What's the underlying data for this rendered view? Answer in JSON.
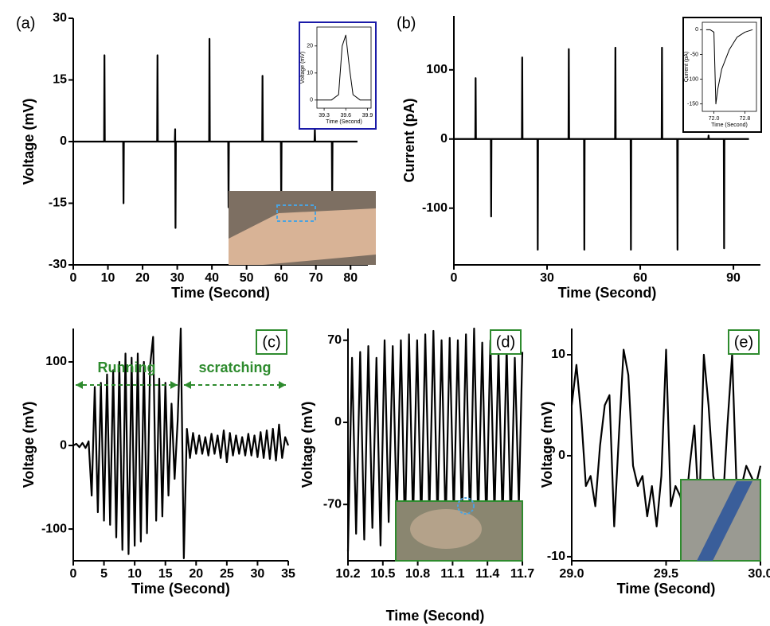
{
  "chart_data": [
    {
      "type": "line",
      "panel_label": "(a)",
      "xlabel": "Time (Second)",
      "ylabel": "Voltage (mV)",
      "color": "#000000",
      "x": [
        0,
        8.9,
        9,
        9.1,
        14.4,
        14.5,
        14.6,
        24.2,
        24.3,
        24.4,
        29.3,
        29.4,
        29.5,
        29.6,
        39.2,
        39.3,
        39.4,
        44.7,
        44.8,
        44.9,
        54.5,
        54.6,
        54.7,
        59.9,
        60,
        60.1,
        69.6,
        69.7,
        69.8,
        74.6,
        74.7,
        74.8,
        82
      ],
      "values": [
        0,
        0,
        21,
        0,
        0,
        -15,
        0,
        0,
        21,
        0,
        0,
        3,
        -21,
        0,
        0,
        25,
        0,
        0,
        -16,
        0,
        0,
        16,
        0,
        0,
        -16,
        0,
        0,
        3,
        0,
        0,
        -16,
        0,
        0
      ],
      "xlim": [
        0,
        85
      ],
      "xticks": [
        0,
        10,
        20,
        30,
        40,
        50,
        60,
        70,
        80
      ],
      "ylim": [
        -30,
        30
      ],
      "yticks": [
        -30,
        -15,
        0,
        15,
        30
      ]
    },
    {
      "type": "line",
      "xlabel": "Time (Second)",
      "ylabel": "Voltage (mV)",
      "color": "#000000",
      "x": [
        39.2,
        39.3,
        39.4,
        39.5,
        39.55,
        39.6,
        39.65,
        39.7,
        39.8,
        39.9,
        39.95
      ],
      "values": [
        0,
        0,
        0,
        2,
        20,
        24,
        12,
        2,
        0,
        0,
        0
      ],
      "xlim": [
        39.2,
        39.95
      ],
      "xticks": [
        39.3,
        39.6,
        39.9
      ],
      "ylim": [
        -3,
        27
      ],
      "yticks": [
        0,
        10,
        20
      ]
    },
    {
      "type": "line",
      "panel_label": "(b)",
      "xlabel": "Time (Second)",
      "ylabel": "Current (pA)",
      "color": "#000000",
      "x": [
        0,
        6.9,
        7,
        7.1,
        11.9,
        12,
        12.1,
        21.9,
        22,
        22.1,
        26.9,
        27,
        27.1,
        36.9,
        37,
        37.1,
        41.9,
        42,
        42.1,
        51.9,
        52,
        52.1,
        56.9,
        57,
        57.1,
        66.9,
        67,
        67.1,
        71.9,
        72,
        72.1,
        81.9,
        82,
        82.1,
        86.9,
        87,
        87.1,
        95
      ],
      "values": [
        0,
        0,
        88,
        0,
        0,
        -112,
        0,
        0,
        118,
        0,
        0,
        -160,
        0,
        0,
        130,
        0,
        0,
        -160,
        0,
        0,
        132,
        0,
        0,
        -160,
        0,
        0,
        132,
        0,
        0,
        -160,
        0,
        0,
        5,
        0,
        0,
        -158,
        0,
        0
      ],
      "xlim": [
        0,
        98.7
      ],
      "xticks": [
        0,
        30,
        60,
        90
      ],
      "ylim": [
        -182,
        178
      ],
      "yticks": [
        -100,
        0,
        100
      ]
    },
    {
      "type": "line",
      "xlabel": "Time (Second)",
      "ylabel": "Current (pA)",
      "color": "#000000",
      "x": [
        71.8,
        71.9,
        72.0,
        72.05,
        72.1,
        72.2,
        72.4,
        72.6,
        72.8,
        73.0
      ],
      "values": [
        0,
        0,
        -5,
        -150,
        -120,
        -80,
        -40,
        -15,
        -5,
        0
      ],
      "xlim": [
        71.7,
        73.1
      ],
      "xticks": [
        {
          "value": 72,
          "label": "72.0"
        },
        72.8
      ],
      "ylim": [
        -165,
        15
      ],
      "yticks": [
        0,
        -50,
        -100,
        -150
      ]
    },
    {
      "type": "line",
      "panel_label": "(c)",
      "xlabel": "Time (Second)",
      "ylabel": "Voltage (mV)",
      "color": "#000000",
      "annotations": [
        "Running",
        "scratching"
      ],
      "x": [
        0,
        0.5,
        1,
        1.5,
        2,
        2.5,
        3,
        3.5,
        4,
        4.5,
        5,
        5.5,
        6,
        6.5,
        7,
        7.5,
        8,
        8.5,
        9,
        9.5,
        10,
        10.5,
        11,
        11.5,
        12,
        12.5,
        13,
        13.5,
        14,
        14.5,
        15,
        15.5,
        16,
        16.5,
        17,
        17.5,
        18,
        18.5,
        19,
        19.5,
        20,
        20.5,
        21,
        21.5,
        22,
        22.5,
        23,
        23.5,
        24,
        24.5,
        25,
        25.5,
        26,
        26.5,
        27,
        27.5,
        28,
        28.5,
        29,
        29.5,
        30,
        30.5,
        31,
        31.5,
        32,
        32.5,
        33,
        33.5,
        34,
        34.5,
        35
      ],
      "values": [
        0,
        2,
        -2,
        3,
        -3,
        5,
        -60,
        70,
        -80,
        75,
        -90,
        85,
        -95,
        90,
        -110,
        100,
        -125,
        110,
        -130,
        105,
        -120,
        110,
        -115,
        100,
        -105,
        95,
        130,
        -90,
        80,
        -85,
        75,
        -60,
        50,
        -40,
        30,
        140,
        -135,
        20,
        -15,
        15,
        -10,
        12,
        -10,
        10,
        -12,
        14,
        -10,
        12,
        -15,
        18,
        -20,
        15,
        -12,
        12,
        -10,
        10,
        -12,
        14,
        -12,
        12,
        -14,
        16,
        -15,
        18,
        -16,
        20,
        -18,
        25,
        -15,
        10,
        0
      ],
      "xlim": [
        0,
        35
      ],
      "xticks": [
        0,
        5,
        10,
        15,
        20,
        25,
        30,
        35
      ],
      "ylim": [
        -138,
        140
      ],
      "yticks": [
        -100,
        0,
        100
      ]
    },
    {
      "type": "line",
      "panel_label": "(d)",
      "xlabel": "Time (Second)",
      "ylabel": "Voltage (mV)",
      "color": "#000000",
      "x": [
        10.2,
        10.235,
        10.27,
        10.305,
        10.34,
        10.375,
        10.41,
        10.445,
        10.48,
        10.515,
        10.55,
        10.585,
        10.62,
        10.655,
        10.69,
        10.725,
        10.76,
        10.795,
        10.83,
        10.865,
        10.9,
        10.935,
        10.97,
        11.005,
        11.04,
        11.075,
        11.11,
        11.145,
        11.18,
        11.215,
        11.25,
        11.285,
        11.32,
        11.355,
        11.39,
        11.425,
        11.46,
        11.495,
        11.53,
        11.565,
        11.6,
        11.635,
        11.67,
        11.7
      ],
      "values": [
        -110,
        55,
        -95,
        60,
        -100,
        65,
        -90,
        55,
        -105,
        70,
        -85,
        65,
        -80,
        70,
        -95,
        75,
        -85,
        70,
        -90,
        75,
        -80,
        78,
        -85,
        70,
        -90,
        72,
        -80,
        70,
        -85,
        75,
        -90,
        80,
        -85,
        68,
        -90,
        70,
        -80,
        60,
        -85,
        65,
        -90,
        55,
        -70,
        60
      ],
      "xlim": [
        10.2,
        11.7
      ],
      "xticks": [
        10.2,
        10.5,
        10.8,
        11.1,
        11.4,
        11.7
      ],
      "ylim": [
        -118,
        80
      ],
      "yticks": [
        -70,
        0,
        70
      ]
    },
    {
      "type": "line",
      "panel_label": "(e)",
      "xlabel": "Time (Second)",
      "ylabel": "Voltage (mV)",
      "color": "#000000",
      "x": [
        29.0,
        29.025,
        29.05,
        29.075,
        29.1,
        29.125,
        29.15,
        29.175,
        29.2,
        29.225,
        29.25,
        29.275,
        29.3,
        29.325,
        29.35,
        29.375,
        29.4,
        29.425,
        29.45,
        29.475,
        29.5,
        29.525,
        29.55,
        29.575,
        29.6,
        29.625,
        29.65,
        29.675,
        29.7,
        29.725,
        29.75,
        29.775,
        29.8,
        29.825,
        29.85,
        29.875,
        29.9,
        29.925,
        29.95,
        29.975,
        30.0
      ],
      "values": [
        5,
        9,
        4,
        -3,
        -2,
        -5,
        1,
        5,
        6,
        -7,
        2,
        10.5,
        8,
        -1,
        -3,
        -2,
        -6,
        -3,
        -7,
        -2,
        10.5,
        -5,
        -3,
        -4,
        -6,
        -1,
        3,
        -6,
        10,
        5,
        -2,
        -4,
        -5,
        3,
        10,
        -4,
        -3,
        -1,
        -2,
        -3,
        -1
      ],
      "xlim": [
        29.0,
        30.0
      ],
      "xticks": [
        {
          "value": 29,
          "label": "29.0"
        },
        29.5,
        {
          "value": 30,
          "label": "30.0"
        }
      ],
      "ylim": [
        -10.4,
        12.6
      ],
      "yticks": [
        -10,
        0,
        10
      ]
    }
  ]
}
